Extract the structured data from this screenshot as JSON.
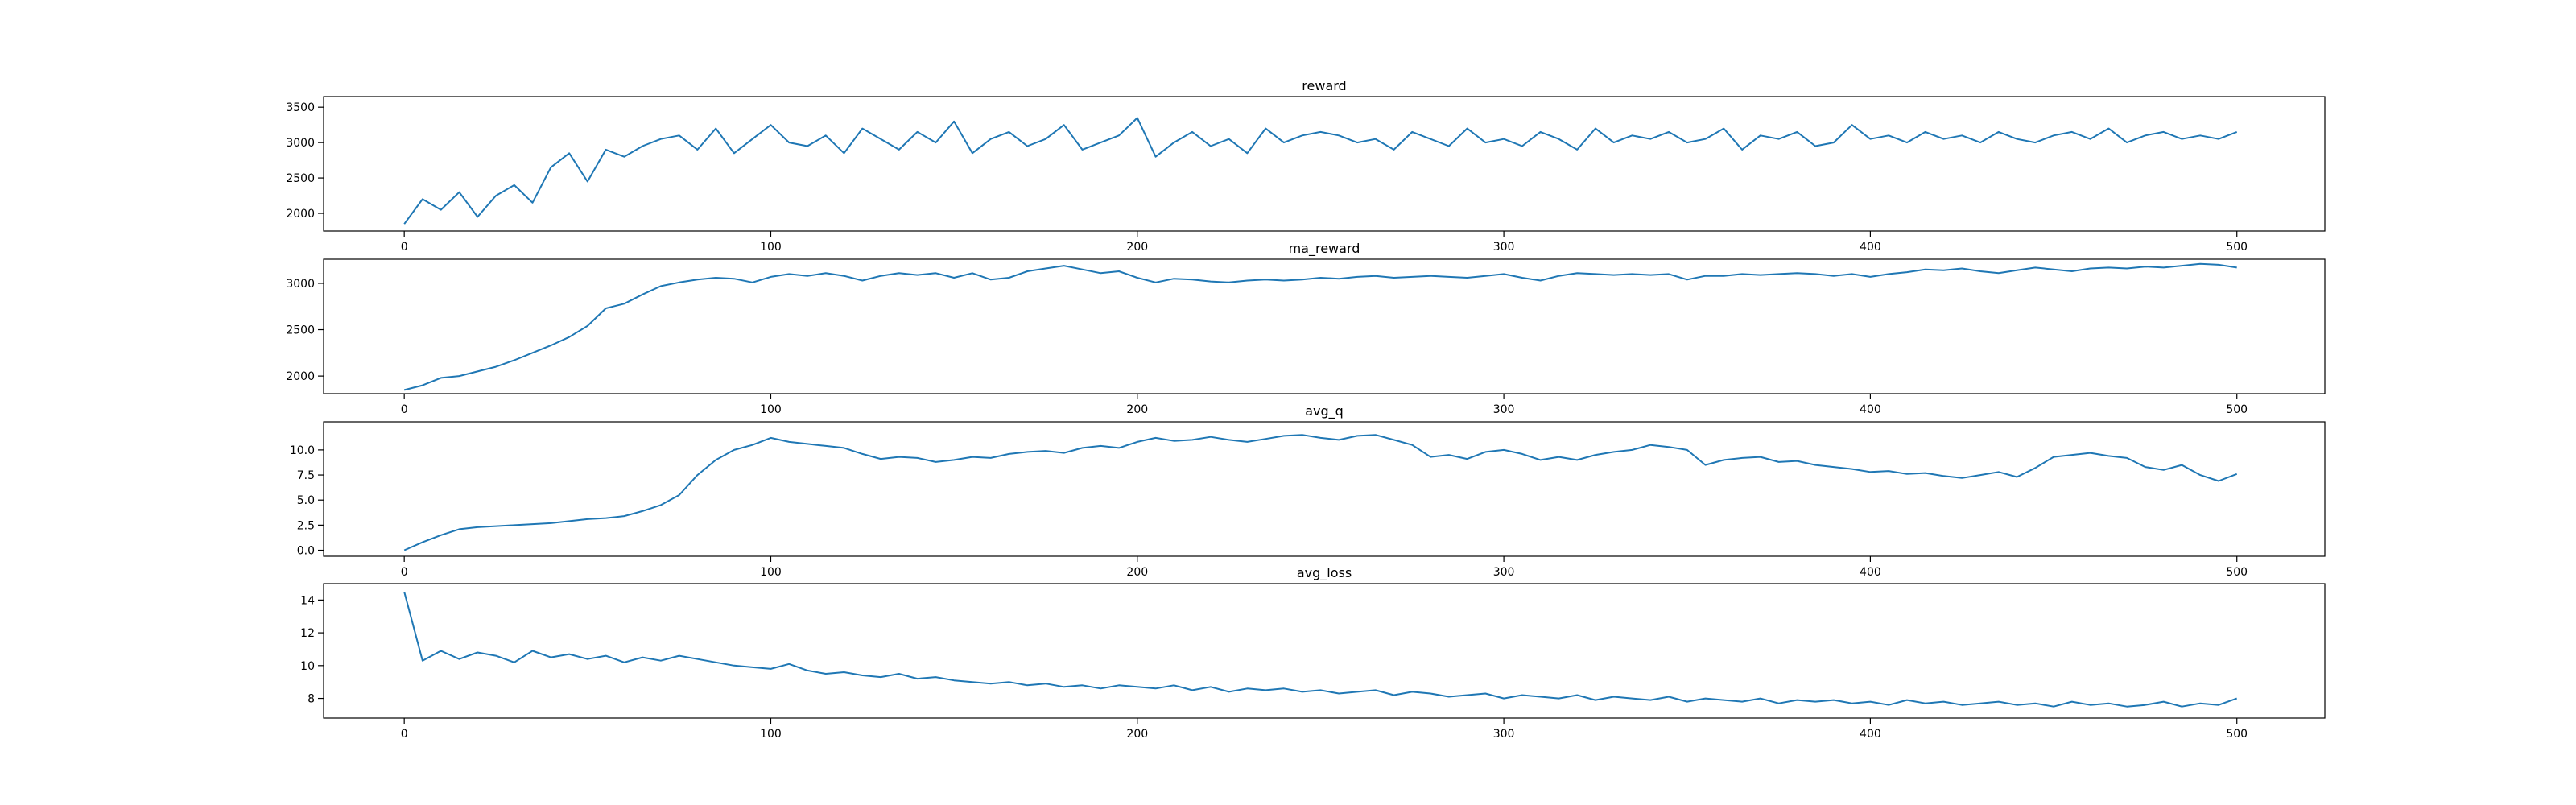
{
  "figure": {
    "line_color": "#1f77b4"
  },
  "chart_data": [
    {
      "type": "line",
      "title": "reward",
      "xlim": [
        -22,
        524
      ],
      "ylim": [
        1750,
        3650
      ],
      "xticks": [
        0,
        100,
        200,
        300,
        400,
        500
      ],
      "yticks": [
        2000,
        2500,
        3000,
        3500
      ],
      "xticklabels": [
        "0",
        "100",
        "200",
        "300",
        "400",
        "500"
      ],
      "yticklabels": [
        "2000",
        "2500",
        "3000",
        "3500"
      ],
      "grid": false,
      "series": [
        {
          "x_start": 0,
          "x_step": 5,
          "values": [
            1850,
            2200,
            2050,
            2300,
            1950,
            2250,
            2400,
            2150,
            2650,
            2850,
            2450,
            2900,
            2800,
            2950,
            3050,
            3100,
            2900,
            3200,
            2850,
            3050,
            3250,
            3000,
            2950,
            3100,
            2850,
            3200,
            3050,
            2900,
            3150,
            3000,
            3300,
            2850,
            3050,
            3150,
            2950,
            3050,
            3250,
            2900,
            3000,
            3100,
            3350,
            2800,
            3000,
            3150,
            2950,
            3050,
            2850,
            3200,
            3000,
            3100,
            3150,
            3100,
            3000,
            3050,
            2900,
            3150,
            3050,
            2950,
            3200,
            3000,
            3050,
            2950,
            3150,
            3050,
            2900,
            3200,
            3000,
            3100,
            3050,
            3150,
            3000,
            3050,
            3200,
            2900,
            3100,
            3050,
            3150,
            2950,
            3000,
            3250,
            3050,
            3100,
            3000,
            3150,
            3050,
            3100,
            3000,
            3150,
            3050,
            3000,
            3100,
            3150,
            3050,
            3200,
            3000,
            3100,
            3150,
            3050,
            3100,
            3050,
            3150
          ]
        }
      ]
    },
    {
      "type": "line",
      "title": "ma_reward",
      "xlim": [
        -22,
        524
      ],
      "ylim": [
        1810,
        3260
      ],
      "xticks": [
        0,
        100,
        200,
        300,
        400,
        500
      ],
      "yticks": [
        2000,
        2500,
        3000
      ],
      "xticklabels": [
        "0",
        "100",
        "200",
        "300",
        "400",
        "500"
      ],
      "yticklabels": [
        "2000",
        "2500",
        "3000"
      ],
      "grid": false,
      "series": [
        {
          "x_start": 0,
          "x_step": 5,
          "values": [
            1850,
            1900,
            1980,
            2000,
            2050,
            2100,
            2170,
            2250,
            2330,
            2420,
            2540,
            2730,
            2780,
            2880,
            2970,
            3010,
            3040,
            3060,
            3050,
            3010,
            3070,
            3100,
            3080,
            3110,
            3080,
            3030,
            3080,
            3110,
            3090,
            3110,
            3060,
            3110,
            3040,
            3060,
            3130,
            3160,
            3190,
            3150,
            3110,
            3130,
            3060,
            3010,
            3050,
            3040,
            3020,
            3010,
            3030,
            3040,
            3030,
            3040,
            3060,
            3050,
            3070,
            3080,
            3060,
            3070,
            3080,
            3070,
            3060,
            3080,
            3100,
            3060,
            3030,
            3080,
            3110,
            3100,
            3090,
            3100,
            3090,
            3100,
            3040,
            3080,
            3080,
            3100,
            3090,
            3100,
            3110,
            3100,
            3080,
            3100,
            3070,
            3100,
            3120,
            3150,
            3140,
            3160,
            3130,
            3110,
            3140,
            3170,
            3150,
            3130,
            3160,
            3170,
            3160,
            3180,
            3170,
            3190,
            3210,
            3200,
            3170
          ]
        }
      ]
    },
    {
      "type": "line",
      "title": "avg_q",
      "xlim": [
        -22,
        524
      ],
      "ylim": [
        -0.6,
        12.8
      ],
      "xticks": [
        0,
        100,
        200,
        300,
        400,
        500
      ],
      "yticks": [
        0.0,
        2.5,
        5.0,
        7.5,
        10.0
      ],
      "xticklabels": [
        "0",
        "100",
        "200",
        "300",
        "400",
        "500"
      ],
      "yticklabels": [
        "0.0",
        "2.5",
        "5.0",
        "7.5",
        "10.0"
      ],
      "grid": false,
      "series": [
        {
          "x_start": 0,
          "x_step": 5,
          "values": [
            0.0,
            0.8,
            1.5,
            2.1,
            2.3,
            2.4,
            2.5,
            2.6,
            2.7,
            2.9,
            3.1,
            3.2,
            3.4,
            3.9,
            4.5,
            5.5,
            7.5,
            9.0,
            10.0,
            10.5,
            11.2,
            10.8,
            10.6,
            10.4,
            10.2,
            9.6,
            9.1,
            9.3,
            9.2,
            8.8,
            9.0,
            9.3,
            9.2,
            9.6,
            9.8,
            9.9,
            9.7,
            10.2,
            10.4,
            10.2,
            10.8,
            11.2,
            10.9,
            11.0,
            11.3,
            11.0,
            10.8,
            11.1,
            11.4,
            11.5,
            11.2,
            11.0,
            11.4,
            11.5,
            11.0,
            10.5,
            9.3,
            9.5,
            9.1,
            9.8,
            10.0,
            9.6,
            9.0,
            9.3,
            9.0,
            9.5,
            9.8,
            10.0,
            10.5,
            10.3,
            10.0,
            8.5,
            9.0,
            9.2,
            9.3,
            8.8,
            8.9,
            8.5,
            8.3,
            8.1,
            7.8,
            7.9,
            7.6,
            7.7,
            7.4,
            7.2,
            7.5,
            7.8,
            7.3,
            8.2,
            9.3,
            9.5,
            9.7,
            9.4,
            9.2,
            8.3,
            8.0,
            8.5,
            7.5,
            6.9,
            7.6
          ]
        }
      ]
    },
    {
      "type": "line",
      "title": "avg_loss",
      "xlim": [
        -22,
        524
      ],
      "ylim": [
        6.8,
        15.0
      ],
      "xticks": [
        0,
        100,
        200,
        300,
        400,
        500
      ],
      "yticks": [
        8,
        10,
        12,
        14
      ],
      "xticklabels": [
        "0",
        "100",
        "200",
        "300",
        "400",
        "500"
      ],
      "yticklabels": [
        "8",
        "10",
        "12",
        "14"
      ],
      "grid": false,
      "series": [
        {
          "x_start": 0,
          "x_step": 5,
          "values": [
            14.5,
            10.3,
            10.9,
            10.4,
            10.8,
            10.6,
            10.2,
            10.9,
            10.5,
            10.7,
            10.4,
            10.6,
            10.2,
            10.5,
            10.3,
            10.6,
            10.4,
            10.2,
            10.0,
            9.9,
            9.8,
            10.1,
            9.7,
            9.5,
            9.6,
            9.4,
            9.3,
            9.5,
            9.2,
            9.3,
            9.1,
            9.0,
            8.9,
            9.0,
            8.8,
            8.9,
            8.7,
            8.8,
            8.6,
            8.8,
            8.7,
            8.6,
            8.8,
            8.5,
            8.7,
            8.4,
            8.6,
            8.5,
            8.6,
            8.4,
            8.5,
            8.3,
            8.4,
            8.5,
            8.2,
            8.4,
            8.3,
            8.1,
            8.2,
            8.3,
            8.0,
            8.2,
            8.1,
            8.0,
            8.2,
            7.9,
            8.1,
            8.0,
            7.9,
            8.1,
            7.8,
            8.0,
            7.9,
            7.8,
            8.0,
            7.7,
            7.9,
            7.8,
            7.9,
            7.7,
            7.8,
            7.6,
            7.9,
            7.7,
            7.8,
            7.6,
            7.7,
            7.8,
            7.6,
            7.7,
            7.5,
            7.8,
            7.6,
            7.7,
            7.5,
            7.6,
            7.8,
            7.5,
            7.7,
            7.6,
            8.0
          ]
        }
      ]
    }
  ]
}
